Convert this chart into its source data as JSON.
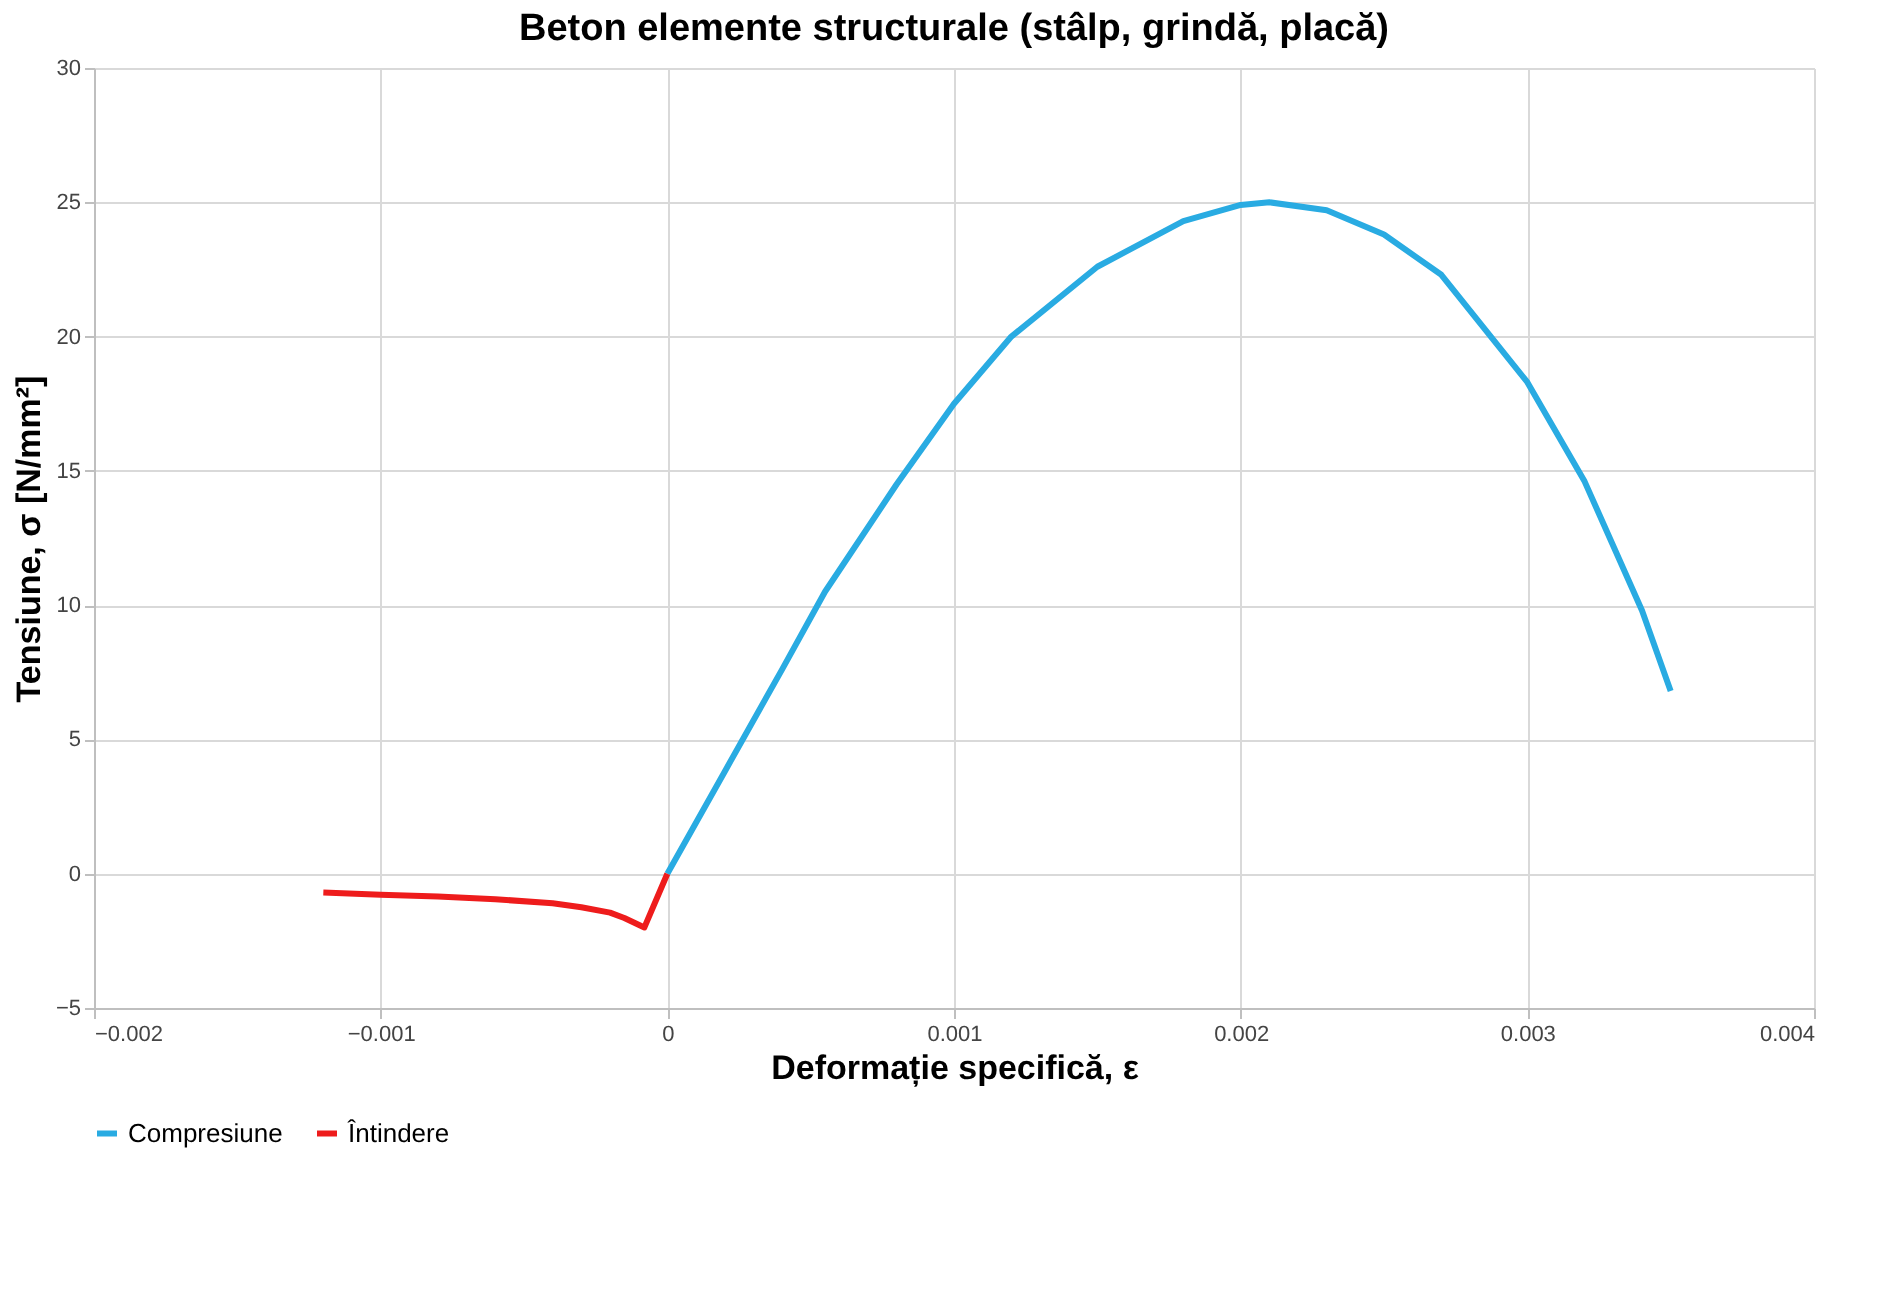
{
  "chart_data": {
    "type": "line",
    "title": "Beton elemente structurale (stâlp, grindă, placă)",
    "xlabel": "Deformație specifică, ε",
    "ylabel": "Tensiune, σ [N/mm²]",
    "xlim": [
      -0.002,
      0.004
    ],
    "xticks": [
      -0.002,
      -0.001,
      0,
      0.001,
      0.002,
      0.003,
      0.004
    ],
    "ylim": [
      -5,
      30
    ],
    "yticks": [
      -5,
      0,
      5,
      10,
      15,
      20,
      25,
      30
    ],
    "grid": true,
    "legend": "bottom",
    "marker": "none",
    "line_style": "solid",
    "series": [
      {
        "name": "Compresiune",
        "color": "#29abe2",
        "x": [
          0,
          0.0002,
          0.0004,
          0.00055,
          0.0006,
          0.0008,
          0.001,
          0.0012,
          0.0015,
          0.0018,
          0.002,
          0.0021,
          0.0023,
          0.0025,
          0.0027,
          0.003,
          0.0032,
          0.0034,
          0.0035
        ],
        "values": [
          0,
          3.8,
          7.6,
          10.5,
          11.3,
          14.5,
          17.5,
          20,
          22.6,
          24.3,
          24.9,
          25,
          24.7,
          23.8,
          22.3,
          18.3,
          14.6,
          9.8,
          6.8
        ]
      },
      {
        "name": "Întindere",
        "color": "#ee1c1c",
        "x": [
          -0.0012,
          -0.001,
          -0.0008,
          -0.0006,
          -0.0004,
          -0.0003,
          -0.0002,
          -0.00015,
          -8e-05,
          0
        ],
        "values": [
          -0.7,
          -0.78,
          -0.85,
          -0.95,
          -1.1,
          -1.25,
          -1.45,
          -1.65,
          -2.0,
          0
        ]
      }
    ]
  }
}
